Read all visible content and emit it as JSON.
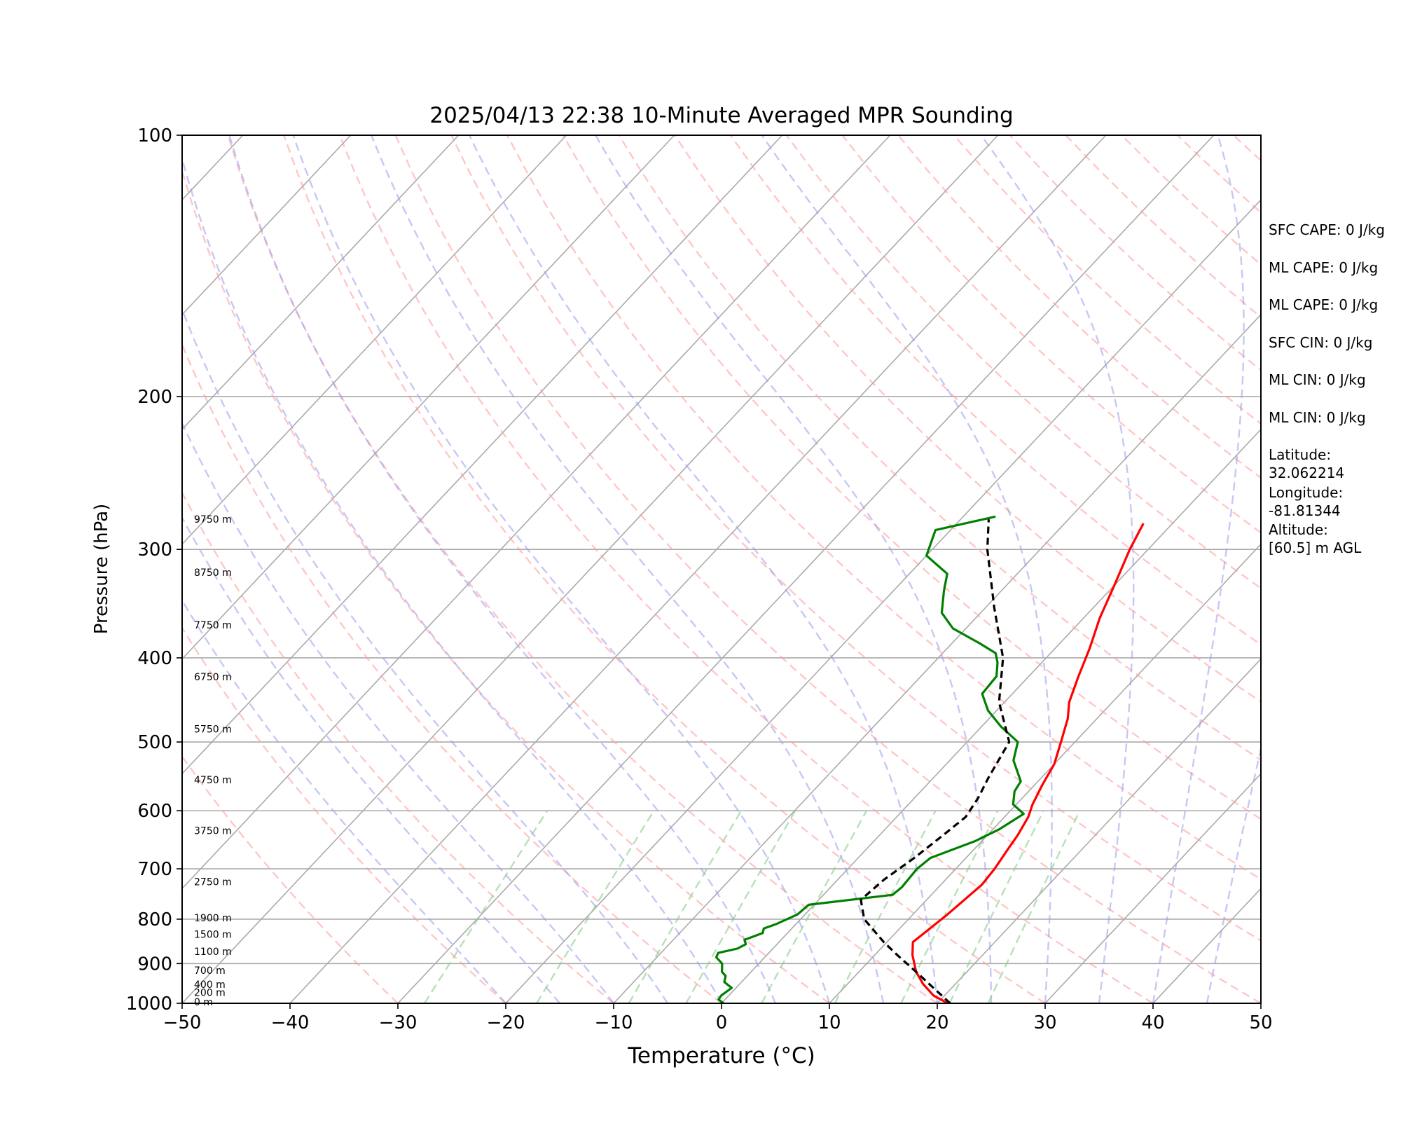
{
  "chart_data": {
    "type": "line",
    "title": "2025/04/13 22:38 10-Minute Averaged MPR Sounding",
    "xlabel": "Temperature (°C)",
    "ylabel": "Pressure (hPa)",
    "xlim": [
      -50,
      50
    ],
    "ylim": [
      1000,
      100
    ],
    "y_scale": "log",
    "skew": true,
    "x_ticks": [
      "−50",
      "−40",
      "−30",
      "−20",
      "−10",
      "0",
      "10",
      "20",
      "30",
      "40",
      "50"
    ],
    "y_ticks": [
      {
        "p": 100,
        "label": "100"
      },
      {
        "p": 200,
        "label": "200"
      },
      {
        "p": 300,
        "label": "300"
      },
      {
        "p": 400,
        "label": "400"
      },
      {
        "p": 500,
        "label": "500"
      },
      {
        "p": 600,
        "label": "600"
      },
      {
        "p": 700,
        "label": "700"
      },
      {
        "p": 800,
        "label": "800"
      },
      {
        "p": 900,
        "label": "900"
      },
      {
        "p": 1000,
        "label": "1000"
      }
    ],
    "height_labels": [
      {
        "p": 1000,
        "label": "0 m"
      },
      {
        "p": 975,
        "label": "200 m"
      },
      {
        "p": 955,
        "label": "400 m"
      },
      {
        "p": 920,
        "label": "700 m"
      },
      {
        "p": 875,
        "label": "1100 m"
      },
      {
        "p": 836,
        "label": "1500 m"
      },
      {
        "p": 800,
        "label": "1900 m"
      },
      {
        "p": 727,
        "label": "2750 m"
      },
      {
        "p": 635,
        "label": "3750 m"
      },
      {
        "p": 555,
        "label": "4750 m"
      },
      {
        "p": 485,
        "label": "5750 m"
      },
      {
        "p": 422,
        "label": "6750 m"
      },
      {
        "p": 368,
        "label": "7750 m"
      },
      {
        "p": 320,
        "label": "8750 m"
      },
      {
        "p": 278,
        "label": "9750 m"
      }
    ],
    "series": [
      {
        "color": "#ff0000",
        "points": [
          [
            1000,
            21
          ],
          [
            980,
            19
          ],
          [
            950,
            17
          ],
          [
            920,
            15.3
          ],
          [
            880,
            13.5
          ],
          [
            850,
            12.4
          ],
          [
            820,
            12.8
          ],
          [
            790,
            13.2
          ],
          [
            760,
            13.5
          ],
          [
            730,
            13.8
          ],
          [
            700,
            13.6
          ],
          [
            670,
            13.2
          ],
          [
            640,
            12.8
          ],
          [
            610,
            12.2
          ],
          [
            590,
            11.5
          ],
          [
            560,
            10.7
          ],
          [
            530,
            10.0
          ],
          [
            500,
            8.7
          ],
          [
            470,
            7.3
          ],
          [
            450,
            6.0
          ],
          [
            420,
            4.6
          ],
          [
            390,
            3.2
          ],
          [
            360,
            1.5
          ],
          [
            330,
            0.0
          ],
          [
            300,
            -1.7
          ],
          [
            280,
            -2.7
          ]
        ]
      },
      {
        "color": "#008000",
        "points": [
          [
            1000,
            0.2
          ],
          [
            990,
            -0.6
          ],
          [
            980,
            -0.7
          ],
          [
            960,
            -0.4
          ],
          [
            945,
            -1.6
          ],
          [
            930,
            -2.0
          ],
          [
            920,
            -2.7
          ],
          [
            900,
            -3.4
          ],
          [
            885,
            -4.5
          ],
          [
            875,
            -4.7
          ],
          [
            865,
            -3.3
          ],
          [
            855,
            -2.9
          ],
          [
            845,
            -3.4
          ],
          [
            830,
            -2.3
          ],
          [
            820,
            -2.6
          ],
          [
            810,
            -1.8
          ],
          [
            790,
            -0.7
          ],
          [
            770,
            -0.5
          ],
          [
            750,
            6.4
          ],
          [
            735,
            6.6
          ],
          [
            700,
            6.4
          ],
          [
            680,
            6.7
          ],
          [
            650,
            9.4
          ],
          [
            630,
            10.6
          ],
          [
            605,
            11.5
          ],
          [
            590,
            9.7
          ],
          [
            570,
            8.7
          ],
          [
            555,
            8.4
          ],
          [
            525,
            5.9
          ],
          [
            500,
            4.7
          ],
          [
            480,
            1.8
          ],
          [
            460,
            -0.8
          ],
          [
            440,
            -2.8
          ],
          [
            420,
            -3.0
          ],
          [
            405,
            -4.1
          ],
          [
            395,
            -5.1
          ],
          [
            385,
            -7.4
          ],
          [
            370,
            -11.2
          ],
          [
            355,
            -13.6
          ],
          [
            335,
            -15.3
          ],
          [
            320,
            -16.5
          ],
          [
            305,
            -20.0
          ],
          [
            285,
            -21.4
          ],
          [
            275,
            -17.0
          ]
        ]
      },
      {
        "color": "#000000",
        "dash": true,
        "points": [
          [
            1000,
            21.2
          ],
          [
            960,
            18.3
          ],
          [
            920,
            15.3
          ],
          [
            880,
            12.1
          ],
          [
            850,
            9.7
          ],
          [
            800,
            5.9
          ],
          [
            760,
            3.9
          ],
          [
            720,
            4.3
          ],
          [
            680,
            5.2
          ],
          [
            640,
            5.9
          ],
          [
            610,
            6.4
          ],
          [
            580,
            5.9
          ],
          [
            550,
            5.1
          ],
          [
            500,
            3.9
          ],
          [
            450,
            -0.5
          ],
          [
            400,
            -4.0
          ],
          [
            350,
            -9.2
          ],
          [
            300,
            -14.9
          ],
          [
            277,
            -17.4
          ]
        ]
      }
    ]
  },
  "side_info": [
    "SFC CAPE: 0 J/kg",
    "ML CAPE: 0 J/kg",
    "ML CAPE: 0 J/kg",
    "SFC CIN: 0 J/kg",
    "ML CIN: 0 J/kg",
    "ML CIN: 0 J/kg",
    "Latitude:\n32.062214",
    "Longitude:\n-81.81344",
    "Altitude:\n[60.5] m AGL"
  ],
  "colors": {
    "temperature": "#ff0000",
    "dewpoint": "#008000",
    "parcel": "#000000",
    "dry_adiabats": "#ff9999",
    "moist_adiabats": "#9999ee",
    "mixing_ratio": "#88cc88",
    "isotherms": "#aaaaaa"
  }
}
